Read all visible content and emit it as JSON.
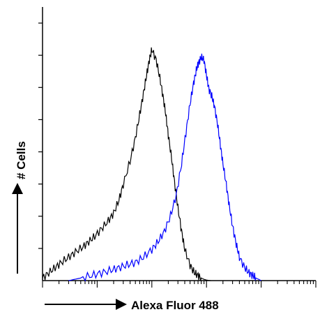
{
  "chart_data": {
    "type": "line",
    "xlabel": "Alexa Fluor 488",
    "ylabel": "# Cells",
    "x_scale": "log",
    "xlim": [
      1,
      100000
    ],
    "ylim": [
      0,
      100
    ],
    "grid": false,
    "legend": "none",
    "series": [
      {
        "color": "#000000",
        "x": [
          1,
          1.3,
          1.7,
          2.2,
          3,
          4,
          5.5,
          7,
          9,
          12,
          16,
          20,
          25,
          30,
          40,
          50,
          60,
          70,
          80,
          90,
          100,
          120,
          140,
          160,
          180,
          200,
          230,
          260,
          300,
          350,
          400,
          500,
          600,
          700,
          800,
          900,
          1000,
          1200
        ],
        "y": [
          1,
          3,
          5,
          7,
          9,
          11,
          13,
          15,
          17,
          20,
          23,
          26,
          31,
          37,
          46,
          55,
          64,
          72,
          79,
          85,
          89,
          85,
          78,
          71,
          64,
          56,
          47,
          38,
          28,
          19,
          12,
          6,
          3,
          2,
          1,
          0.5,
          0.2,
          0
        ]
      },
      {
        "color": "#0000ff",
        "x": [
          3,
          5,
          8,
          12,
          18,
          25,
          35,
          50,
          70,
          100,
          130,
          170,
          220,
          280,
          350,
          420,
          500,
          580,
          650,
          720,
          800,
          900,
          1000,
          1100,
          1250,
          1400,
          1600,
          1800,
          2000,
          2300,
          2600,
          3000,
          3500,
          4000,
          5000,
          6000,
          7000,
          8000,
          9000,
          10000
        ],
        "y": [
          0,
          1,
          2,
          3,
          4,
          5,
          6,
          7,
          9,
          12,
          15,
          19,
          25,
          33,
          45,
          57,
          68,
          76,
          81,
          84,
          86,
          85,
          79,
          74,
          71,
          67,
          60,
          52,
          45,
          37,
          29,
          21,
          14,
          9,
          5,
          3,
          2,
          1,
          0.5,
          0
        ]
      }
    ]
  }
}
